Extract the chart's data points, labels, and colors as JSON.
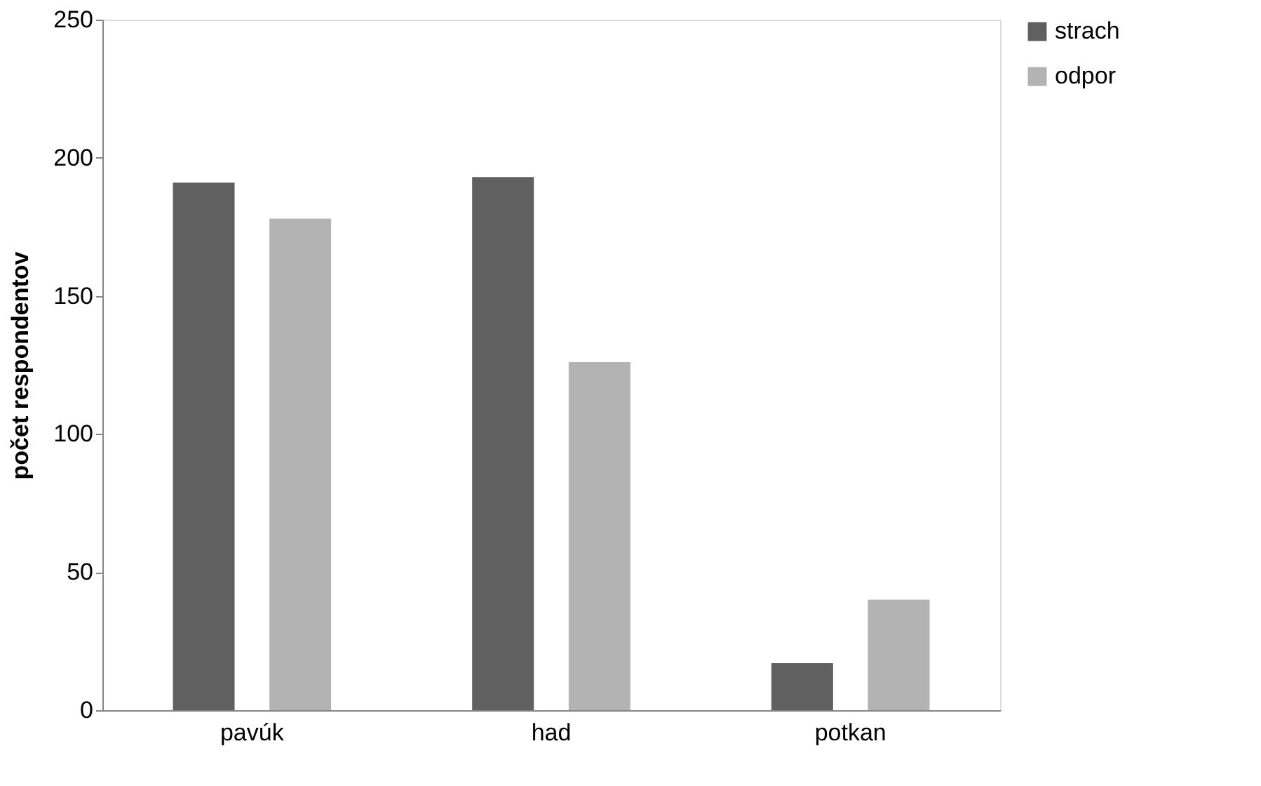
{
  "chart_data": {
    "type": "bar",
    "ylabel": "počet respondentov",
    "categories": [
      "pavúk",
      "had",
      "potkan"
    ],
    "series": [
      {
        "name": "strach",
        "color": "#606060",
        "values": [
          191,
          193,
          17
        ]
      },
      {
        "name": "odpor",
        "color": "#b3b3b3",
        "values": [
          178,
          126,
          40
        ]
      }
    ],
    "ylim": [
      0,
      250
    ],
    "yticks": [
      0,
      50,
      100,
      150,
      200,
      250
    ],
    "grid": false,
    "legend": "right"
  }
}
